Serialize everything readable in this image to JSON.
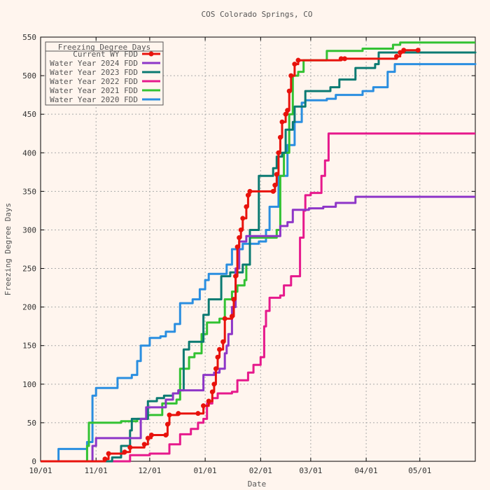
{
  "chart_data": {
    "type": "line",
    "title": "COS Colorado Springs, CO",
    "xlabel": "Date",
    "ylabel": "Freezing Degree Days",
    "x_range": [
      "2024-10-01",
      "2025-06-01"
    ],
    "ylim": [
      0,
      550
    ],
    "y_ticks": [
      0,
      50,
      100,
      150,
      200,
      250,
      300,
      350,
      400,
      450,
      500,
      550
    ],
    "x_ticks": [
      {
        "date": "2024-10-01",
        "label": "10/01"
      },
      {
        "date": "2024-11-01",
        "label": "11/01"
      },
      {
        "date": "2024-12-01",
        "label": "12/01"
      },
      {
        "date": "2025-01-01",
        "label": "01/01"
      },
      {
        "date": "2025-02-01",
        "label": "02/01"
      },
      {
        "date": "2025-03-01",
        "label": "03/01"
      },
      {
        "date": "2025-04-01",
        "label": "04/01"
      },
      {
        "date": "2025-05-01",
        "label": "05/01"
      }
    ],
    "grid": true,
    "legend": {
      "title": "Freezing Degree Days",
      "placement": "top-left"
    },
    "series": [
      {
        "name": "Current WY FDD",
        "color": "#e8120c",
        "markers": true,
        "points": [
          [
            "2024-10-01",
            0
          ],
          [
            "2024-11-05",
            0
          ],
          [
            "2024-11-06",
            3
          ],
          [
            "2024-11-08",
            10
          ],
          [
            "2024-11-17",
            12
          ],
          [
            "2024-11-20",
            18
          ],
          [
            "2024-11-28",
            22
          ],
          [
            "2024-11-30",
            30
          ],
          [
            "2024-12-02",
            34
          ],
          [
            "2024-12-10",
            34
          ],
          [
            "2024-12-11",
            48
          ],
          [
            "2024-12-12",
            60
          ],
          [
            "2024-12-17",
            62
          ],
          [
            "2024-12-28",
            62
          ],
          [
            "2024-12-31",
            72
          ],
          [
            "2025-01-03",
            78
          ],
          [
            "2025-01-05",
            90
          ],
          [
            "2025-01-06",
            100
          ],
          [
            "2025-01-07",
            120
          ],
          [
            "2025-01-08",
            135
          ],
          [
            "2025-01-09",
            145
          ],
          [
            "2025-01-11",
            155
          ],
          [
            "2025-01-12",
            185
          ],
          [
            "2025-01-16",
            188
          ],
          [
            "2025-01-17",
            210
          ],
          [
            "2025-01-18",
            240
          ],
          [
            "2025-01-19",
            278
          ],
          [
            "2025-01-20",
            290
          ],
          [
            "2025-01-21",
            300
          ],
          [
            "2025-01-22",
            315
          ],
          [
            "2025-01-24",
            330
          ],
          [
            "2025-01-25",
            345
          ],
          [
            "2025-01-26",
            350
          ],
          [
            "2025-02-08",
            350
          ],
          [
            "2025-02-09",
            358
          ],
          [
            "2025-02-10",
            372
          ],
          [
            "2025-02-11",
            400
          ],
          [
            "2025-02-12",
            420
          ],
          [
            "2025-02-13",
            440
          ],
          [
            "2025-02-15",
            450
          ],
          [
            "2025-02-16",
            455
          ],
          [
            "2025-02-17",
            480
          ],
          [
            "2025-02-18",
            500
          ],
          [
            "2025-02-20",
            515
          ],
          [
            "2025-02-22",
            520
          ],
          [
            "2025-03-18",
            522
          ],
          [
            "2025-03-20",
            522
          ],
          [
            "2025-04-18",
            525
          ],
          [
            "2025-04-20",
            530
          ],
          [
            "2025-04-22",
            533
          ],
          [
            "2025-04-30",
            533
          ]
        ]
      },
      {
        "name": "Water Year 2024 FDD",
        "color": "#8e36c8",
        "markers": false,
        "points": [
          [
            "2024-10-01",
            0
          ],
          [
            "2024-10-29",
            0
          ],
          [
            "2024-10-30",
            20
          ],
          [
            "2024-11-01",
            30
          ],
          [
            "2024-11-24",
            30
          ],
          [
            "2024-11-26",
            55
          ],
          [
            "2024-11-29",
            70
          ],
          [
            "2024-12-10",
            80
          ],
          [
            "2024-12-14",
            88
          ],
          [
            "2024-12-17",
            92
          ],
          [
            "2024-12-28",
            92
          ],
          [
            "2024-12-31",
            112
          ],
          [
            "2025-01-06",
            115
          ],
          [
            "2025-01-09",
            120
          ],
          [
            "2025-01-12",
            140
          ],
          [
            "2025-01-13",
            150
          ],
          [
            "2025-01-14",
            165
          ],
          [
            "2025-01-16",
            200
          ],
          [
            "2025-01-18",
            250
          ],
          [
            "2025-01-20",
            285
          ],
          [
            "2025-01-24",
            292
          ],
          [
            "2025-02-10",
            292
          ],
          [
            "2025-02-12",
            305
          ],
          [
            "2025-02-16",
            310
          ],
          [
            "2025-02-19",
            326
          ],
          [
            "2025-02-26",
            326
          ],
          [
            "2025-02-28",
            328
          ],
          [
            "2025-03-08",
            330
          ],
          [
            "2025-03-15",
            335
          ],
          [
            "2025-03-24",
            335
          ],
          [
            "2025-03-26",
            343
          ],
          [
            "2025-06-01",
            343
          ]
        ]
      },
      {
        "name": "Water Year 2023 FDD",
        "color": "#0b7a72",
        "markers": false,
        "points": [
          [
            "2024-10-01",
            0
          ],
          [
            "2024-11-08",
            0
          ],
          [
            "2024-11-10",
            5
          ],
          [
            "2024-11-15",
            20
          ],
          [
            "2024-11-20",
            40
          ],
          [
            "2024-11-21",
            55
          ],
          [
            "2024-11-25",
            55
          ],
          [
            "2024-11-30",
            78
          ],
          [
            "2024-12-05",
            82
          ],
          [
            "2024-12-09",
            85
          ],
          [
            "2024-12-14",
            88
          ],
          [
            "2024-12-17",
            92
          ],
          [
            "2024-12-20",
            145
          ],
          [
            "2024-12-23",
            155
          ],
          [
            "2024-12-27",
            155
          ],
          [
            "2024-12-31",
            190
          ],
          [
            "2025-01-03",
            210
          ],
          [
            "2025-01-10",
            240
          ],
          [
            "2025-01-15",
            245
          ],
          [
            "2025-01-22",
            255
          ],
          [
            "2025-01-26",
            300
          ],
          [
            "2025-01-31",
            370
          ],
          [
            "2025-02-08",
            380
          ],
          [
            "2025-02-10",
            395
          ],
          [
            "2025-02-13",
            400
          ],
          [
            "2025-02-15",
            430
          ],
          [
            "2025-02-19",
            440
          ],
          [
            "2025-02-20",
            460
          ],
          [
            "2025-02-26",
            480
          ],
          [
            "2025-03-05",
            480
          ],
          [
            "2025-03-12",
            485
          ],
          [
            "2025-03-17",
            495
          ],
          [
            "2025-03-26",
            510
          ],
          [
            "2025-04-06",
            515
          ],
          [
            "2025-04-08",
            530
          ],
          [
            "2025-06-01",
            531
          ]
        ]
      },
      {
        "name": "Water Year 2022 FDD",
        "color": "#e6198c",
        "markers": false,
        "points": [
          [
            "2024-10-01",
            0
          ],
          [
            "2024-11-16",
            0
          ],
          [
            "2024-11-20",
            8
          ],
          [
            "2024-12-01",
            10
          ],
          [
            "2024-12-09",
            10
          ],
          [
            "2024-12-12",
            22
          ],
          [
            "2024-12-18",
            35
          ],
          [
            "2024-12-24",
            42
          ],
          [
            "2024-12-28",
            50
          ],
          [
            "2024-12-31",
            55
          ],
          [
            "2025-01-02",
            75
          ],
          [
            "2025-01-05",
            82
          ],
          [
            "2025-01-08",
            88
          ],
          [
            "2025-01-16",
            90
          ],
          [
            "2025-01-19",
            105
          ],
          [
            "2025-01-25",
            115
          ],
          [
            "2025-01-28",
            125
          ],
          [
            "2025-02-01",
            135
          ],
          [
            "2025-02-03",
            175
          ],
          [
            "2025-02-04",
            195
          ],
          [
            "2025-02-06",
            212
          ],
          [
            "2025-02-12",
            215
          ],
          [
            "2025-02-14",
            228
          ],
          [
            "2025-02-18",
            240
          ],
          [
            "2025-02-21",
            240
          ],
          [
            "2025-02-23",
            290
          ],
          [
            "2025-02-25",
            325
          ],
          [
            "2025-02-26",
            345
          ],
          [
            "2025-03-01",
            348
          ],
          [
            "2025-03-05",
            348
          ],
          [
            "2025-03-07",
            370
          ],
          [
            "2025-03-09",
            390
          ],
          [
            "2025-03-11",
            425
          ],
          [
            "2025-03-15",
            425
          ],
          [
            "2025-06-01",
            425
          ]
        ]
      },
      {
        "name": "Water Year 2021 FDD",
        "color": "#33c233",
        "markers": false,
        "points": [
          [
            "2024-10-01",
            0
          ],
          [
            "2024-10-25",
            0
          ],
          [
            "2024-10-27",
            20
          ],
          [
            "2024-10-28",
            50
          ],
          [
            "2024-11-15",
            52
          ],
          [
            "2024-11-24",
            55
          ],
          [
            "2024-11-30",
            60
          ],
          [
            "2024-12-08",
            75
          ],
          [
            "2024-12-16",
            80
          ],
          [
            "2024-12-18",
            120
          ],
          [
            "2024-12-23",
            135
          ],
          [
            "2024-12-26",
            140
          ],
          [
            "2024-12-30",
            165
          ],
          [
            "2025-01-02",
            180
          ],
          [
            "2025-01-09",
            185
          ],
          [
            "2025-01-12",
            210
          ],
          [
            "2025-01-16",
            220
          ],
          [
            "2025-01-19",
            228
          ],
          [
            "2025-01-23",
            235
          ],
          [
            "2025-01-24",
            255
          ],
          [
            "2025-01-26",
            290
          ],
          [
            "2025-02-07",
            290
          ],
          [
            "2025-02-10",
            300
          ],
          [
            "2025-02-12",
            370
          ],
          [
            "2025-02-14",
            400
          ],
          [
            "2025-02-17",
            450
          ],
          [
            "2025-02-19",
            500
          ],
          [
            "2025-02-22",
            505
          ],
          [
            "2025-02-25",
            520
          ],
          [
            "2025-03-06",
            520
          ],
          [
            "2025-03-10",
            532
          ],
          [
            "2025-03-30",
            535
          ],
          [
            "2025-04-16",
            540
          ],
          [
            "2025-04-20",
            543
          ],
          [
            "2025-06-01",
            543
          ]
        ]
      },
      {
        "name": "Water Year 2020 FDD",
        "color": "#2a8ee0",
        "markers": false,
        "points": [
          [
            "2024-10-01",
            0
          ],
          [
            "2024-10-10",
            0
          ],
          [
            "2024-10-11",
            16
          ],
          [
            "2024-10-24",
            16
          ],
          [
            "2024-10-27",
            25
          ],
          [
            "2024-10-30",
            85
          ],
          [
            "2024-11-01",
            95
          ],
          [
            "2024-11-11",
            95
          ],
          [
            "2024-11-13",
            108
          ],
          [
            "2024-11-21",
            112
          ],
          [
            "2024-11-24",
            130
          ],
          [
            "2024-11-26",
            150
          ],
          [
            "2024-12-01",
            160
          ],
          [
            "2024-12-07",
            162
          ],
          [
            "2024-12-10",
            168
          ],
          [
            "2024-12-15",
            178
          ],
          [
            "2024-12-18",
            205
          ],
          [
            "2024-12-25",
            210
          ],
          [
            "2024-12-29",
            223
          ],
          [
            "2025-01-01",
            235
          ],
          [
            "2025-01-03",
            243
          ],
          [
            "2025-01-10",
            243
          ],
          [
            "2025-01-13",
            255
          ],
          [
            "2025-01-16",
            275
          ],
          [
            "2025-01-22",
            282
          ],
          [
            "2025-01-31",
            285
          ],
          [
            "2025-02-04",
            300
          ],
          [
            "2025-02-06",
            330
          ],
          [
            "2025-02-11",
            370
          ],
          [
            "2025-02-16",
            410
          ],
          [
            "2025-02-20",
            440
          ],
          [
            "2025-02-24",
            465
          ],
          [
            "2025-02-26",
            468
          ],
          [
            "2025-03-10",
            470
          ],
          [
            "2025-03-15",
            475
          ],
          [
            "2025-03-30",
            480
          ],
          [
            "2025-04-05",
            485
          ],
          [
            "2025-04-11",
            485
          ],
          [
            "2025-04-13",
            505
          ],
          [
            "2025-04-17",
            515
          ],
          [
            "2025-06-01",
            516
          ]
        ]
      }
    ]
  }
}
